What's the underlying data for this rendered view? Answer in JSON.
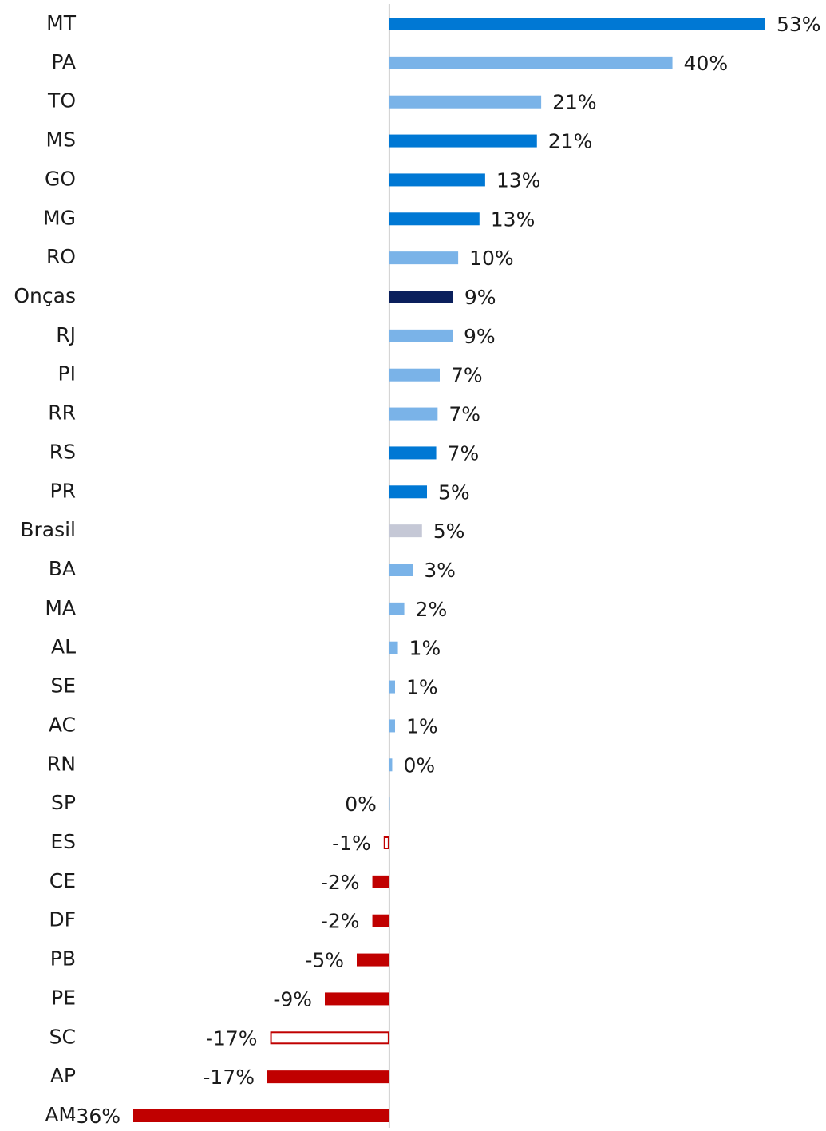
{
  "chart_data": {
    "type": "barh",
    "categories": [
      "MT",
      "PA",
      "TO",
      "MS",
      "GO",
      "MG",
      "RO",
      "Onças",
      "RJ",
      "PI",
      "RR",
      "RS",
      "PR",
      "Brasil",
      "BA",
      "MA",
      "AL",
      "SE",
      "AC",
      "RN",
      "SP",
      "ES",
      "CE",
      "DF",
      "PB",
      "PE",
      "SC",
      "AP",
      "AM"
    ],
    "values": [
      53.0,
      39.9,
      21.4,
      20.8,
      13.5,
      12.7,
      9.7,
      9.0,
      8.9,
      7.1,
      6.8,
      6.6,
      5.3,
      4.6,
      3.3,
      2.1,
      1.2,
      0.8,
      0.8,
      0.4,
      0,
      -0.8,
      -2.4,
      -2.4,
      -4.6,
      -9.1,
      -16.8,
      -17.2,
      -36.1
    ],
    "value_labels": [
      "53%",
      "40%",
      "21%",
      "21%",
      "13%",
      "13%",
      "10%",
      "9%",
      "9%",
      "7%",
      "7%",
      "7%",
      "5%",
      "5%",
      "3%",
      "2%",
      "1%",
      "1%",
      "1%",
      "0%",
      "0%",
      "-1%",
      "-2%",
      "-2%",
      "-5%",
      "-9%",
      "-17%",
      "-17%",
      "-36%"
    ],
    "colors": [
      "#0078d4",
      "#7ab3e8",
      "#7ab3e8",
      "#0078d4",
      "#0078d4",
      "#0078d4",
      "#7ab3e8",
      "#0a1f5c",
      "#7ab3e8",
      "#7ab3e8",
      "#7ab3e8",
      "#0078d4",
      "#0078d4",
      "#c5c8d6",
      "#7ab3e8",
      "#7ab3e8",
      "#7ab3e8",
      "#7ab3e8",
      "#7ab3e8",
      "#7ab3e8",
      "#7ab3e8",
      "#c00000",
      "#c00000",
      "#c00000",
      "#c00000",
      "#c00000",
      "#c00000",
      "#c00000",
      "#c00000"
    ],
    "outlined": [
      false,
      false,
      false,
      false,
      false,
      false,
      false,
      false,
      false,
      false,
      false,
      false,
      false,
      false,
      false,
      false,
      false,
      false,
      false,
      false,
      false,
      true,
      false,
      false,
      false,
      false,
      true,
      false,
      false
    ]
  }
}
